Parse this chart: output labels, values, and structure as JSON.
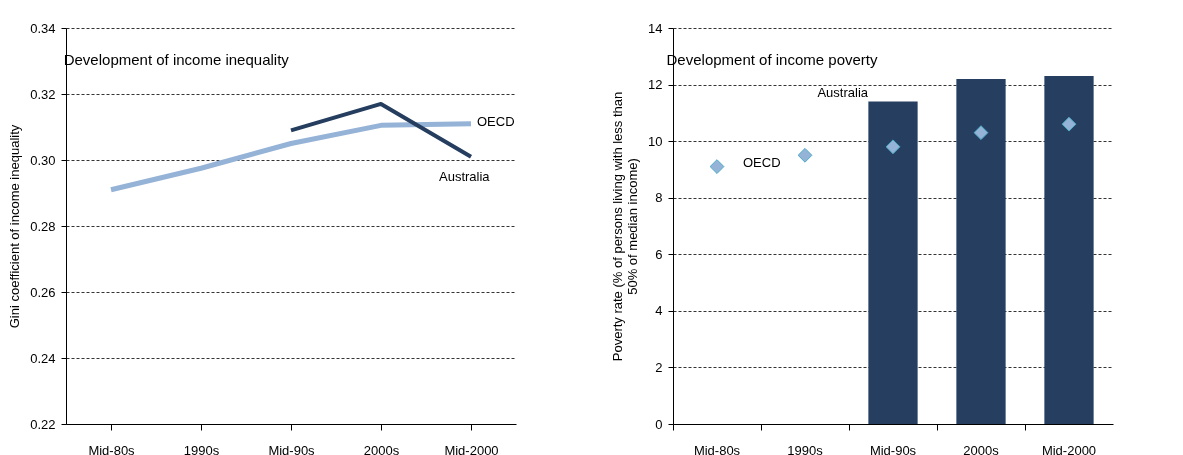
{
  "chart_data": [
    {
      "type": "line",
      "title": "Development of income inequality",
      "ylabel": "Gini coefficient of income inequality",
      "categories": [
        "Mid-80s",
        "1990s",
        "Mid-90s",
        "2000s",
        "Mid-2000"
      ],
      "series": [
        {
          "name": "OECD",
          "color": "#95b3d7",
          "values": [
            0.291,
            0.2975,
            0.305,
            0.3105,
            0.311
          ]
        },
        {
          "name": "Australia",
          "color": "#253d5e",
          "values": [
            null,
            null,
            0.309,
            0.317,
            0.301
          ]
        }
      ],
      "ylim": [
        0.22,
        0.34
      ],
      "yticks": [
        0.22,
        0.24,
        0.26,
        0.28,
        {
          "value": 0.3,
          "label": "0.30"
        },
        0.32,
        0.34
      ],
      "grid": "y"
    },
    {
      "type": "bar",
      "title": "Development of income poverty",
      "ylabel": "Poverty rate  (% of persons living with less than\n50% of median income)",
      "categories": [
        "Mid-80s",
        "1990s",
        "Mid-90s",
        "2000s",
        "Mid-2000"
      ],
      "series": [
        {
          "name": "Australia",
          "color": "#263f60",
          "values": [
            null,
            null,
            11.4,
            12.2,
            12.3
          ]
        },
        {
          "name": "OECD",
          "type": "scatter",
          "color": "#95b3d7",
          "values": [
            9.1,
            9.5,
            9.8,
            10.3,
            10.6
          ]
        }
      ],
      "ylim": [
        0,
        14
      ],
      "yticks": [
        0,
        2,
        4,
        6,
        8,
        10,
        12,
        14
      ],
      "grid": "y",
      "marker": "diamond"
    }
  ]
}
